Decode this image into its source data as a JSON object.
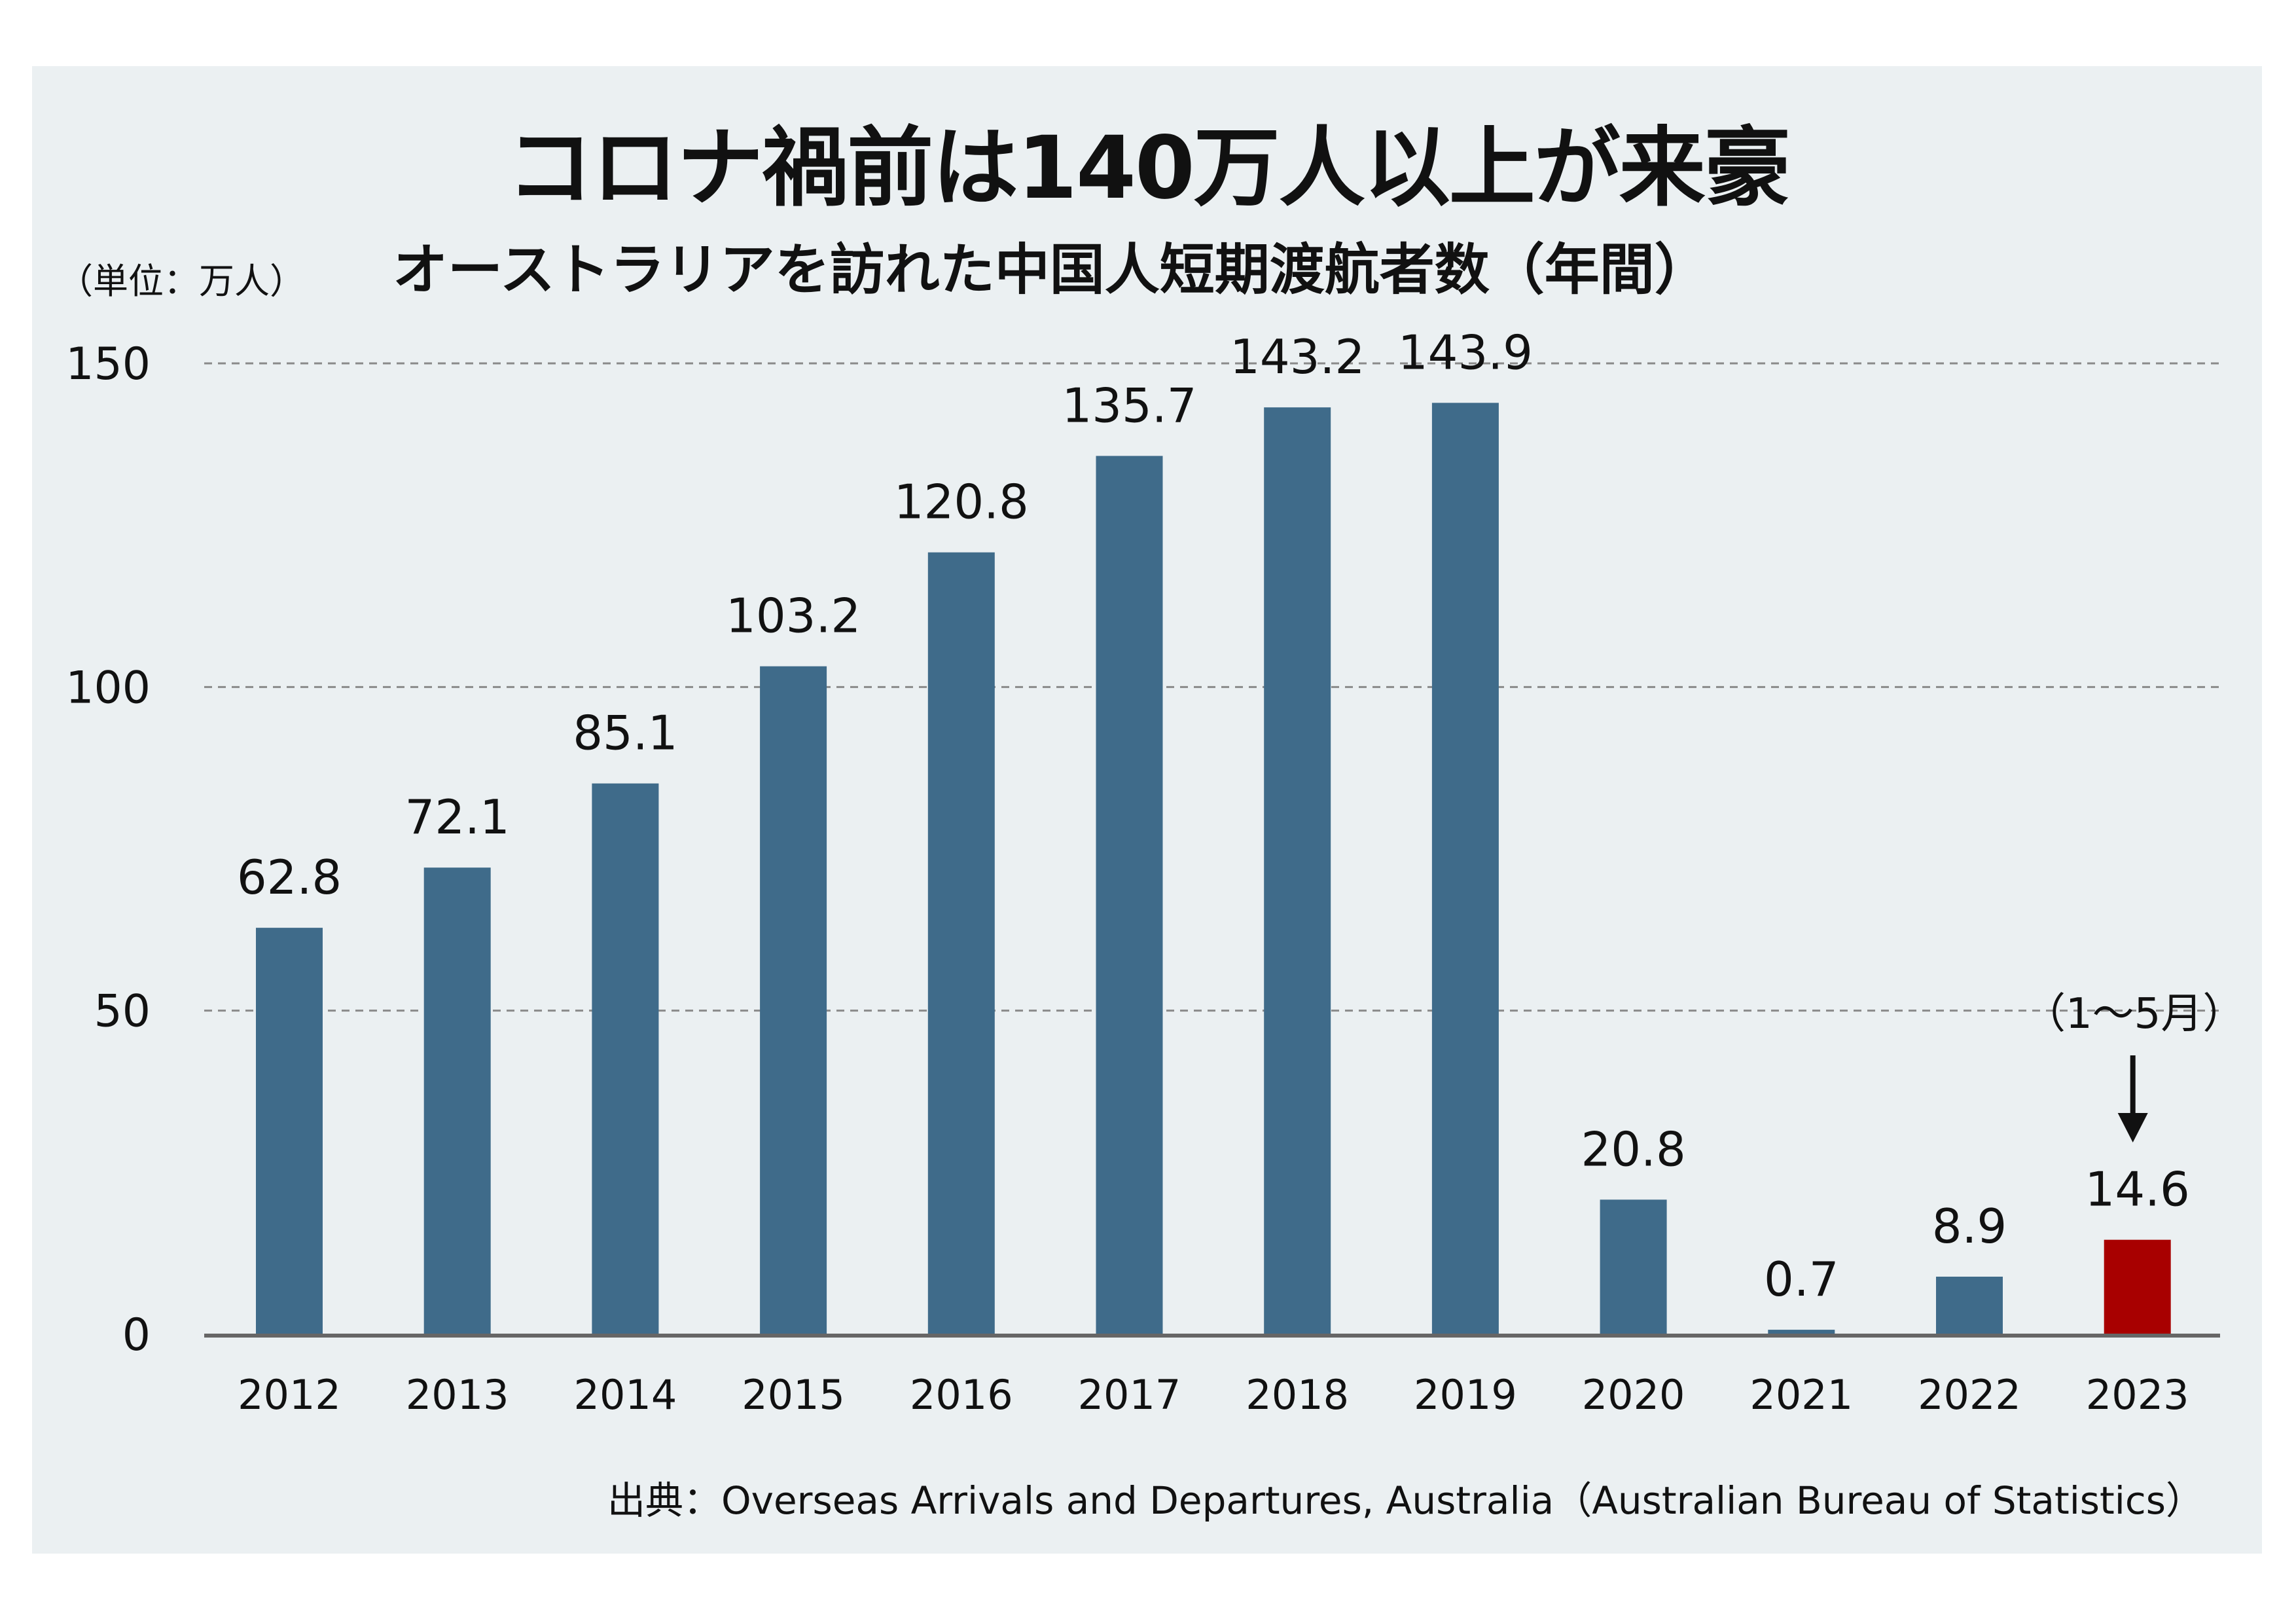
{
  "title": "コロナ禍前は140万人以上が来豪",
  "subtitle": "オーストラリアを訪れた中国人短期渡航者数（年間）",
  "unit_label": "（単位：万人）",
  "source": "出典：Overseas Arrivals and Departures, Australia（Australian Bureau of Statistics）",
  "annotation": "（1～5月）",
  "colors": {
    "panel_background": "#ebf0f2",
    "bar": "#3f6b8a",
    "highlight_bar": "#a80000",
    "gridline": "#8a8a8a",
    "axis": "#666666"
  },
  "chart_data": {
    "type": "bar",
    "categories": [
      "2012",
      "2013",
      "2014",
      "2015",
      "2016",
      "2017",
      "2018",
      "2019",
      "2020",
      "2021",
      "2022",
      "2023"
    ],
    "values": [
      62.8,
      72.1,
      85.1,
      103.2,
      120.8,
      135.7,
      143.2,
      143.9,
      20.8,
      0.7,
      8.9,
      14.6
    ],
    "value_labels": [
      "62.8",
      "72.1",
      "85.1",
      "103.2",
      "120.8",
      "135.7",
      "143.2",
      "143.9",
      "20.8",
      "0.7",
      "8.9",
      "14.6"
    ],
    "highlight": [
      "2023"
    ],
    "title": "オーストラリアを訪れた中国人短期渡航者数（年間）",
    "xlabel": "",
    "ylabel": "（単位：万人）",
    "ylim": [
      0,
      150
    ],
    "yticks": [
      "0",
      "50",
      "100",
      "150"
    ],
    "grid": "dashed horizontal at 50, 100, 150",
    "legend": "none"
  }
}
